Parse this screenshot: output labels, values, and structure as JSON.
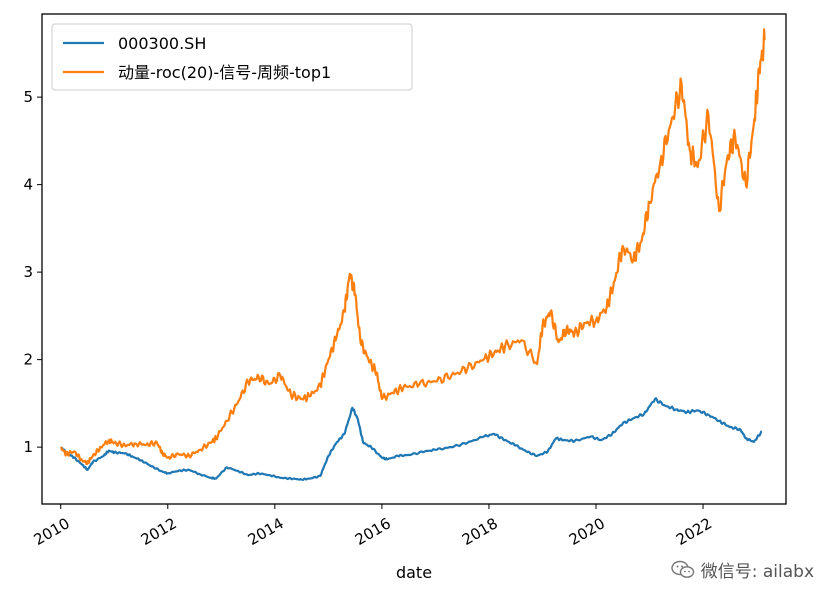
{
  "chart_data": {
    "type": "line",
    "xlabel": "date",
    "xlim": [
      2009.65,
      2023.55
    ],
    "ylim": [
      0.35,
      5.95
    ],
    "x_ticks": [
      {
        "value": 2010,
        "label": "2010"
      },
      {
        "value": 2012,
        "label": "2012"
      },
      {
        "value": 2014,
        "label": "2014"
      },
      {
        "value": 2016,
        "label": "2016"
      },
      {
        "value": 2018,
        "label": "2018"
      },
      {
        "value": 2020,
        "label": "2020"
      },
      {
        "value": 2022,
        "label": "2022"
      }
    ],
    "y_ticks": [
      {
        "value": 1,
        "label": "1"
      },
      {
        "value": 2,
        "label": "2"
      },
      {
        "value": 3,
        "label": "3"
      },
      {
        "value": 4,
        "label": "4"
      },
      {
        "value": 5,
        "label": "5"
      }
    ],
    "grid": false,
    "legend_position": "top-left",
    "series": [
      {
        "name": "000300.SH",
        "color": "#1f77b4",
        "x": [
          2010.0,
          2010.1,
          2010.25,
          2010.4,
          2010.5,
          2010.6,
          2010.8,
          2010.9,
          2011.0,
          2011.2,
          2011.35,
          2011.5,
          2011.7,
          2011.9,
          2012.0,
          2012.2,
          2012.4,
          2012.6,
          2012.8,
          2012.9,
          2013.1,
          2013.3,
          2013.5,
          2013.7,
          2013.9,
          2014.1,
          2014.3,
          2014.5,
          2014.65,
          2014.85,
          2015.0,
          2015.15,
          2015.3,
          2015.45,
          2015.55,
          2015.65,
          2015.8,
          2016.0,
          2016.1,
          2016.3,
          2016.5,
          2016.8,
          2017.0,
          2017.3,
          2017.6,
          2017.9,
          2018.1,
          2018.3,
          2018.5,
          2018.7,
          2018.9,
          2019.1,
          2019.25,
          2019.4,
          2019.6,
          2019.9,
          2020.1,
          2020.3,
          2020.5,
          2020.7,
          2020.9,
          2021.1,
          2021.3,
          2021.5,
          2021.7,
          2021.9,
          2022.1,
          2022.3,
          2022.5,
          2022.7,
          2022.8,
          2022.95,
          2023.1
        ],
        "y": [
          1.0,
          0.94,
          0.88,
          0.8,
          0.74,
          0.83,
          0.9,
          0.96,
          0.94,
          0.93,
          0.89,
          0.85,
          0.78,
          0.72,
          0.7,
          0.73,
          0.74,
          0.69,
          0.65,
          0.64,
          0.77,
          0.73,
          0.68,
          0.7,
          0.68,
          0.65,
          0.64,
          0.63,
          0.64,
          0.67,
          0.9,
          1.05,
          1.15,
          1.45,
          1.32,
          1.05,
          1.0,
          0.88,
          0.86,
          0.9,
          0.91,
          0.95,
          0.97,
          1.0,
          1.05,
          1.12,
          1.15,
          1.08,
          1.02,
          0.95,
          0.9,
          0.95,
          1.1,
          1.08,
          1.07,
          1.12,
          1.08,
          1.15,
          1.27,
          1.33,
          1.38,
          1.55,
          1.47,
          1.43,
          1.4,
          1.42,
          1.37,
          1.3,
          1.23,
          1.2,
          1.1,
          1.06,
          1.18
        ]
      },
      {
        "name": "动量-roc(20)-信号-周频-top1",
        "color": "#ff7f0e",
        "x": [
          2010.0,
          2010.1,
          2010.25,
          2010.4,
          2010.5,
          2010.6,
          2010.75,
          2010.9,
          2011.0,
          2011.2,
          2011.4,
          2011.6,
          2011.8,
          2011.9,
          2012.0,
          2012.2,
          2012.4,
          2012.6,
          2012.8,
          2012.9,
          2013.1,
          2013.3,
          2013.5,
          2013.7,
          2013.9,
          2014.1,
          2014.3,
          2014.5,
          2014.65,
          2014.85,
          2015.0,
          2015.15,
          2015.3,
          2015.4,
          2015.5,
          2015.6,
          2015.75,
          2015.9,
          2016.0,
          2016.2,
          2016.4,
          2016.7,
          2017.0,
          2017.3,
          2017.6,
          2017.9,
          2018.1,
          2018.3,
          2018.6,
          2018.9,
          2019.0,
          2019.15,
          2019.3,
          2019.45,
          2019.6,
          2019.8,
          2020.0,
          2020.2,
          2020.35,
          2020.5,
          2020.7,
          2020.85,
          2021.0,
          2021.2,
          2021.4,
          2021.6,
          2021.75,
          2021.9,
          2022.1,
          2022.3,
          2022.45,
          2022.6,
          2022.8,
          2022.95,
          2023.05,
          2023.15
        ],
        "y": [
          1.0,
          0.92,
          0.95,
          0.85,
          0.82,
          0.9,
          1.0,
          1.08,
          1.05,
          1.02,
          1.04,
          1.03,
          1.05,
          0.93,
          0.88,
          0.92,
          0.9,
          0.97,
          1.05,
          1.1,
          1.3,
          1.5,
          1.75,
          1.8,
          1.72,
          1.82,
          1.6,
          1.55,
          1.58,
          1.7,
          2.0,
          2.25,
          2.55,
          2.98,
          2.75,
          2.2,
          2.0,
          1.85,
          1.55,
          1.62,
          1.68,
          1.72,
          1.75,
          1.82,
          1.9,
          2.0,
          2.08,
          2.15,
          2.22,
          1.95,
          2.38,
          2.55,
          2.2,
          2.35,
          2.3,
          2.42,
          2.45,
          2.6,
          2.9,
          3.3,
          3.15,
          3.35,
          3.8,
          4.25,
          4.7,
          5.15,
          4.4,
          4.2,
          4.8,
          3.7,
          4.3,
          4.55,
          4.0,
          4.7,
          5.3,
          5.65
        ]
      }
    ]
  },
  "watermark": {
    "text": "微信号: ailabx",
    "icon": "wechat-icon"
  }
}
